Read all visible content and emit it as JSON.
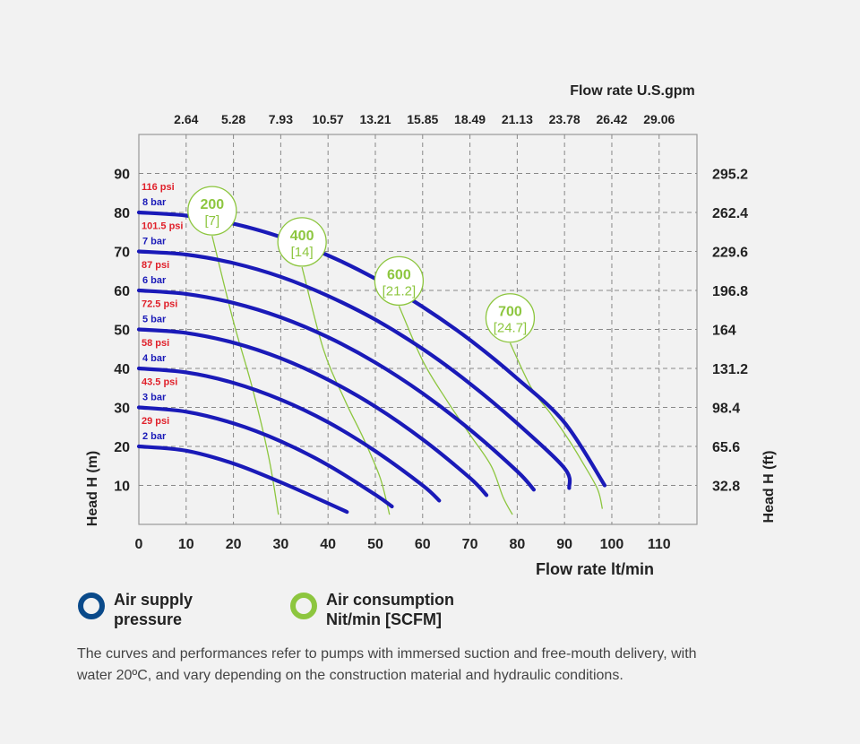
{
  "chart_data": {
    "type": "line",
    "title": "",
    "x_bottom": {
      "label": "Flow rate lt/min",
      "ticks": [
        0,
        10,
        20,
        30,
        40,
        50,
        60,
        70,
        80,
        90,
        100,
        110
      ],
      "range": [
        0,
        118
      ]
    },
    "x_top": {
      "label": "Flow rate U.S.gpm",
      "ticks": [
        "2.64",
        "5.28",
        "7.93",
        "10.57",
        "13.21",
        "15.85",
        "18.49",
        "21.13",
        "23.78",
        "26.42",
        "29.06"
      ]
    },
    "y_left": {
      "label": "Head H (m)",
      "ticks": [
        10,
        20,
        30,
        40,
        50,
        60,
        70,
        80,
        90
      ],
      "range": [
        0,
        100
      ]
    },
    "y_right": {
      "label": "Head H (ft)",
      "ticks": [
        "32.8",
        "65.6",
        "98.4",
        "131.2",
        "164",
        "196.8",
        "229.6",
        "262.4",
        "295.2"
      ]
    },
    "grid": true,
    "series": [
      {
        "name": "2 bar",
        "alt_name": "29 psi",
        "x": [
          0,
          10,
          20,
          30,
          40,
          44
        ],
        "y": [
          20,
          18.9,
          15.6,
          10.8,
          5.4,
          3.2
        ]
      },
      {
        "name": "3 bar",
        "alt_name": "43.5 psi",
        "x": [
          0,
          10,
          20,
          30,
          40,
          50,
          53.5
        ],
        "y": [
          30,
          28.9,
          25.9,
          21.3,
          15.2,
          7.6,
          4.6
        ]
      },
      {
        "name": "4 bar",
        "alt_name": "58 psi",
        "x": [
          0,
          10,
          20,
          30,
          40,
          50,
          60,
          63.5
        ],
        "y": [
          40,
          39.0,
          36.3,
          32.0,
          26.2,
          18.8,
          10.0,
          6.1
        ]
      },
      {
        "name": "5 bar",
        "alt_name": "72.5 psi",
        "x": [
          0,
          10,
          20,
          30,
          40,
          50,
          60,
          70,
          73.5
        ],
        "y": [
          50,
          49.1,
          46.6,
          42.6,
          37.1,
          30.2,
          21.8,
          11.9,
          7.5
        ]
      },
      {
        "name": "6 bar",
        "alt_name": "87 psi",
        "x": [
          0,
          10,
          20,
          30,
          40,
          50,
          60,
          70,
          80,
          83.5
        ],
        "y": [
          60,
          59.1,
          56.8,
          53.1,
          48.0,
          41.5,
          33.6,
          24.3,
          13.6,
          8.9
        ]
      },
      {
        "name": "7 bar",
        "alt_name": "101.5 psi",
        "x": [
          0,
          10,
          20,
          30,
          40,
          50,
          60,
          70,
          80,
          90,
          91
        ],
        "y": [
          70,
          69.2,
          67.0,
          63.5,
          58.6,
          52.5,
          45.0,
          36.1,
          25.9,
          14.4,
          9.3
        ]
      },
      {
        "name": "8 bar",
        "alt_name": "116 psi",
        "x": [
          0,
          10,
          20,
          30,
          40,
          50,
          60,
          70,
          80,
          90,
          98.5
        ],
        "y": [
          80,
          79.2,
          77.1,
          73.7,
          69.0,
          63.0,
          55.8,
          47.3,
          37.4,
          26.1,
          10.0
        ]
      }
    ],
    "air_consumption": [
      {
        "value": "200",
        "scfm": "[7]",
        "x": [
          15.5,
          20,
          24,
          27.5,
          29.5
        ],
        "y": [
          74,
          52,
          35,
          17,
          2.5
        ]
      },
      {
        "value": "400",
        "scfm": "[14]",
        "x": [
          34.5,
          39,
          43.5,
          47.5,
          51,
          53
        ],
        "y": [
          66,
          45,
          32,
          22,
          12,
          2.5
        ]
      },
      {
        "value": "600",
        "scfm": "[21.2]",
        "x": [
          55,
          60,
          65,
          70,
          74.5,
          77,
          79
        ],
        "y": [
          56,
          42,
          32,
          23,
          15,
          7,
          2.5
        ]
      },
      {
        "value": "700",
        "scfm": "[24.7]",
        "x": [
          78.5,
          83,
          87,
          91,
          94,
          97,
          98
        ],
        "y": [
          46.5,
          35,
          28.5,
          21.5,
          15.5,
          9,
          4
        ]
      }
    ]
  },
  "legend": {
    "air_supply": {
      "line1": "Air supply",
      "line2": "pressure",
      "color": "#0a4a8a"
    },
    "air_consumption": {
      "line1": "Air consumption",
      "line2": "Nit/min [SCFM]",
      "color": "#8dc63f"
    }
  },
  "colors": {
    "curve": "#1a1ab8",
    "psi": "#e0202a",
    "bar": "#1a1ab8",
    "air": "#8dc63f",
    "grid": "#888888"
  },
  "note": {
    "line1": "The curves and performances refer to pumps with immersed suction and free-mouth delivery, with",
    "line2": "water 20ºC, and vary depending on the construction material and hydraulic conditions."
  }
}
